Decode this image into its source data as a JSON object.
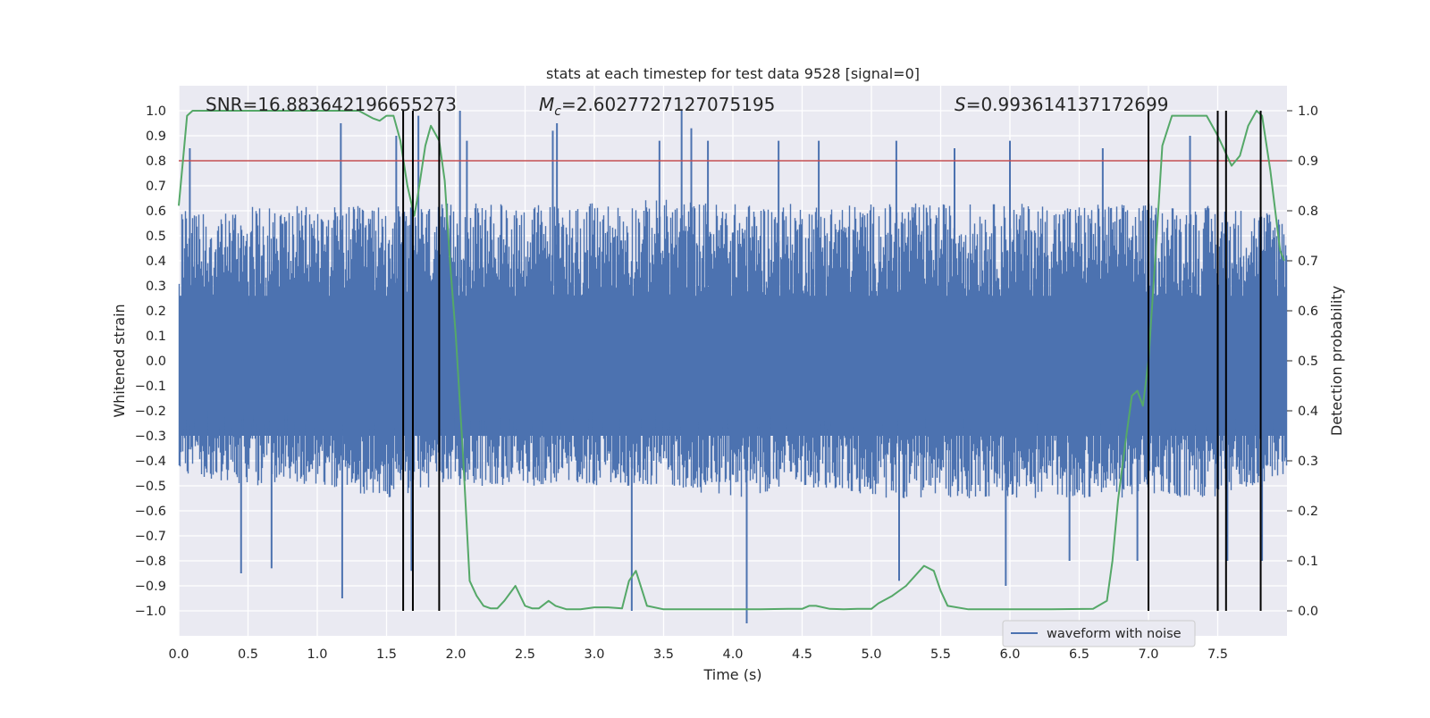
{
  "chart_data": {
    "type": "line",
    "title": "stats at each timestep for test data 9528 [signal=0]",
    "xlabel": "Time (s)",
    "ylabel": "Whitened strain",
    "y2label": "Detection probability",
    "xlim": [
      0.0,
      8.0
    ],
    "ylim": [
      -1.1,
      1.1
    ],
    "y2lim": [
      -0.05,
      1.05
    ],
    "xticks": [
      "0.0",
      "0.5",
      "1.0",
      "1.5",
      "2.0",
      "2.5",
      "3.0",
      "3.5",
      "4.0",
      "4.5",
      "5.0",
      "5.5",
      "6.0",
      "6.5",
      "7.0",
      "7.5"
    ],
    "yticks": [
      "1.0",
      "0.9",
      "0.8",
      "0.7",
      "0.6",
      "0.5",
      "0.4",
      "0.3",
      "0.2",
      "0.1",
      "0.0",
      "−0.1",
      "−0.2",
      "−0.3",
      "−0.4",
      "−0.5",
      "−0.6",
      "−0.7",
      "−0.8",
      "−0.9",
      "−1.0"
    ],
    "y2ticks": [
      "1.0",
      "0.9",
      "0.8",
      "0.7",
      "0.6",
      "0.5",
      "0.4",
      "0.3",
      "0.2",
      "0.1",
      "0.0"
    ],
    "grid": true,
    "legend_placement": "lower-right",
    "annotations": {
      "snr": "SNR=16.883642196655273",
      "mc_symbol": "M",
      "mc_subscript": "c",
      "mc_value": "=2.6027727127075195",
      "s_symbol": "S",
      "s_value": "=0.993614137172699"
    },
    "threshold": {
      "y2": 0.9,
      "color": "#c44e52"
    },
    "detection_markers_x": [
      1.62,
      1.69,
      1.88,
      7.0,
      7.5,
      7.56,
      7.81
    ],
    "series": [
      {
        "name": "waveform with noise",
        "color": "#4c72b0",
        "envelope_upper": [
          [
            0.0,
            0.6
          ],
          [
            0.5,
            0.62
          ],
          [
            1.0,
            0.62
          ],
          [
            1.5,
            0.62
          ],
          [
            2.0,
            0.63
          ],
          [
            2.5,
            0.63
          ],
          [
            3.0,
            0.63
          ],
          [
            3.5,
            0.65
          ],
          [
            4.0,
            0.63
          ],
          [
            4.5,
            0.63
          ],
          [
            5.0,
            0.63
          ],
          [
            5.5,
            0.63
          ],
          [
            6.0,
            0.63
          ],
          [
            6.5,
            0.63
          ],
          [
            7.0,
            0.63
          ],
          [
            7.5,
            0.62
          ],
          [
            8.0,
            0.6
          ]
        ],
        "envelope_lower": [
          [
            0.0,
            -0.45
          ],
          [
            0.5,
            -0.5
          ],
          [
            1.0,
            -0.5
          ],
          [
            1.5,
            -0.55
          ],
          [
            2.0,
            -0.5
          ],
          [
            2.5,
            -0.5
          ],
          [
            3.0,
            -0.5
          ],
          [
            3.5,
            -0.5
          ],
          [
            4.0,
            -0.55
          ],
          [
            4.5,
            -0.5
          ],
          [
            5.0,
            -0.55
          ],
          [
            5.5,
            -0.55
          ],
          [
            6.0,
            -0.55
          ],
          [
            6.5,
            -0.55
          ],
          [
            7.0,
            -0.55
          ],
          [
            7.5,
            -0.55
          ],
          [
            8.0,
            -0.45
          ]
        ],
        "spikes_up": [
          [
            0.08,
            0.85
          ],
          [
            1.17,
            0.95
          ],
          [
            1.57,
            0.9
          ],
          [
            1.73,
            0.98
          ],
          [
            2.03,
            1.0
          ],
          [
            2.08,
            0.88
          ],
          [
            2.7,
            0.92
          ],
          [
            2.73,
            0.95
          ],
          [
            3.47,
            0.88
          ],
          [
            3.63,
            1.0
          ],
          [
            3.7,
            0.93
          ],
          [
            3.82,
            0.88
          ],
          [
            4.33,
            0.88
          ],
          [
            4.62,
            0.88
          ],
          [
            5.18,
            0.88
          ],
          [
            5.6,
            0.85
          ],
          [
            6.0,
            0.88
          ],
          [
            6.67,
            0.85
          ],
          [
            7.3,
            0.9
          ],
          [
            7.5,
            0.9
          ]
        ],
        "spikes_down": [
          [
            0.45,
            -0.85
          ],
          [
            0.67,
            -0.83
          ],
          [
            1.18,
            -0.95
          ],
          [
            1.68,
            -0.84
          ],
          [
            3.27,
            -1.0
          ],
          [
            4.1,
            -1.05
          ],
          [
            5.2,
            -0.88
          ],
          [
            5.97,
            -0.9
          ],
          [
            6.43,
            -0.8
          ],
          [
            6.92,
            -0.8
          ],
          [
            7.57,
            -0.8
          ],
          [
            7.82,
            -0.8
          ]
        ]
      },
      {
        "name": "",
        "axis": "y2",
        "color": "#55a868",
        "x": [
          0.0,
          0.03,
          0.06,
          0.1,
          0.2,
          0.4,
          0.7,
          1.0,
          1.2,
          1.3,
          1.4,
          1.45,
          1.5,
          1.55,
          1.6,
          1.65,
          1.7,
          1.72,
          1.78,
          1.82,
          1.86,
          1.88,
          1.92,
          1.96,
          2.0,
          2.05,
          2.1,
          2.15,
          2.2,
          2.25,
          2.3,
          2.35,
          2.43,
          2.5,
          2.55,
          2.6,
          2.67,
          2.72,
          2.8,
          2.9,
          3.0,
          3.1,
          3.2,
          3.25,
          3.3,
          3.38,
          3.5,
          3.8,
          4.0,
          4.2,
          4.4,
          4.5,
          4.55,
          4.6,
          4.7,
          4.8,
          4.9,
          5.0,
          5.05,
          5.15,
          5.25,
          5.38,
          5.45,
          5.5,
          5.55,
          5.7,
          6.0,
          6.3,
          6.6,
          6.7,
          6.74,
          6.78,
          6.83,
          6.88,
          6.92,
          6.96,
          7.0,
          7.05,
          7.1,
          7.17,
          7.25,
          7.35,
          7.42,
          7.5,
          7.55,
          7.6,
          7.66,
          7.72,
          7.78,
          7.82,
          7.88,
          7.95,
          7.98
        ],
        "y": [
          0.81,
          0.9,
          0.99,
          1.0,
          1.0,
          1.0,
          1.0,
          1.0,
          1.0,
          1.0,
          0.985,
          0.98,
          0.99,
          0.99,
          0.94,
          0.85,
          0.79,
          0.82,
          0.93,
          0.97,
          0.95,
          0.94,
          0.86,
          0.69,
          0.55,
          0.32,
          0.06,
          0.03,
          0.01,
          0.005,
          0.005,
          0.02,
          0.05,
          0.01,
          0.005,
          0.005,
          0.02,
          0.01,
          0.003,
          0.003,
          0.007,
          0.007,
          0.005,
          0.06,
          0.08,
          0.01,
          0.003,
          0.003,
          0.003,
          0.003,
          0.004,
          0.004,
          0.01,
          0.01,
          0.004,
          0.003,
          0.004,
          0.004,
          0.015,
          0.03,
          0.05,
          0.09,
          0.08,
          0.04,
          0.01,
          0.003,
          0.003,
          0.003,
          0.004,
          0.02,
          0.1,
          0.22,
          0.33,
          0.43,
          0.44,
          0.41,
          0.5,
          0.71,
          0.93,
          0.99,
          0.99,
          0.99,
          0.99,
          0.95,
          0.92,
          0.89,
          0.91,
          0.97,
          1.0,
          0.99,
          0.88,
          0.72,
          0.7
        ]
      }
    ]
  }
}
